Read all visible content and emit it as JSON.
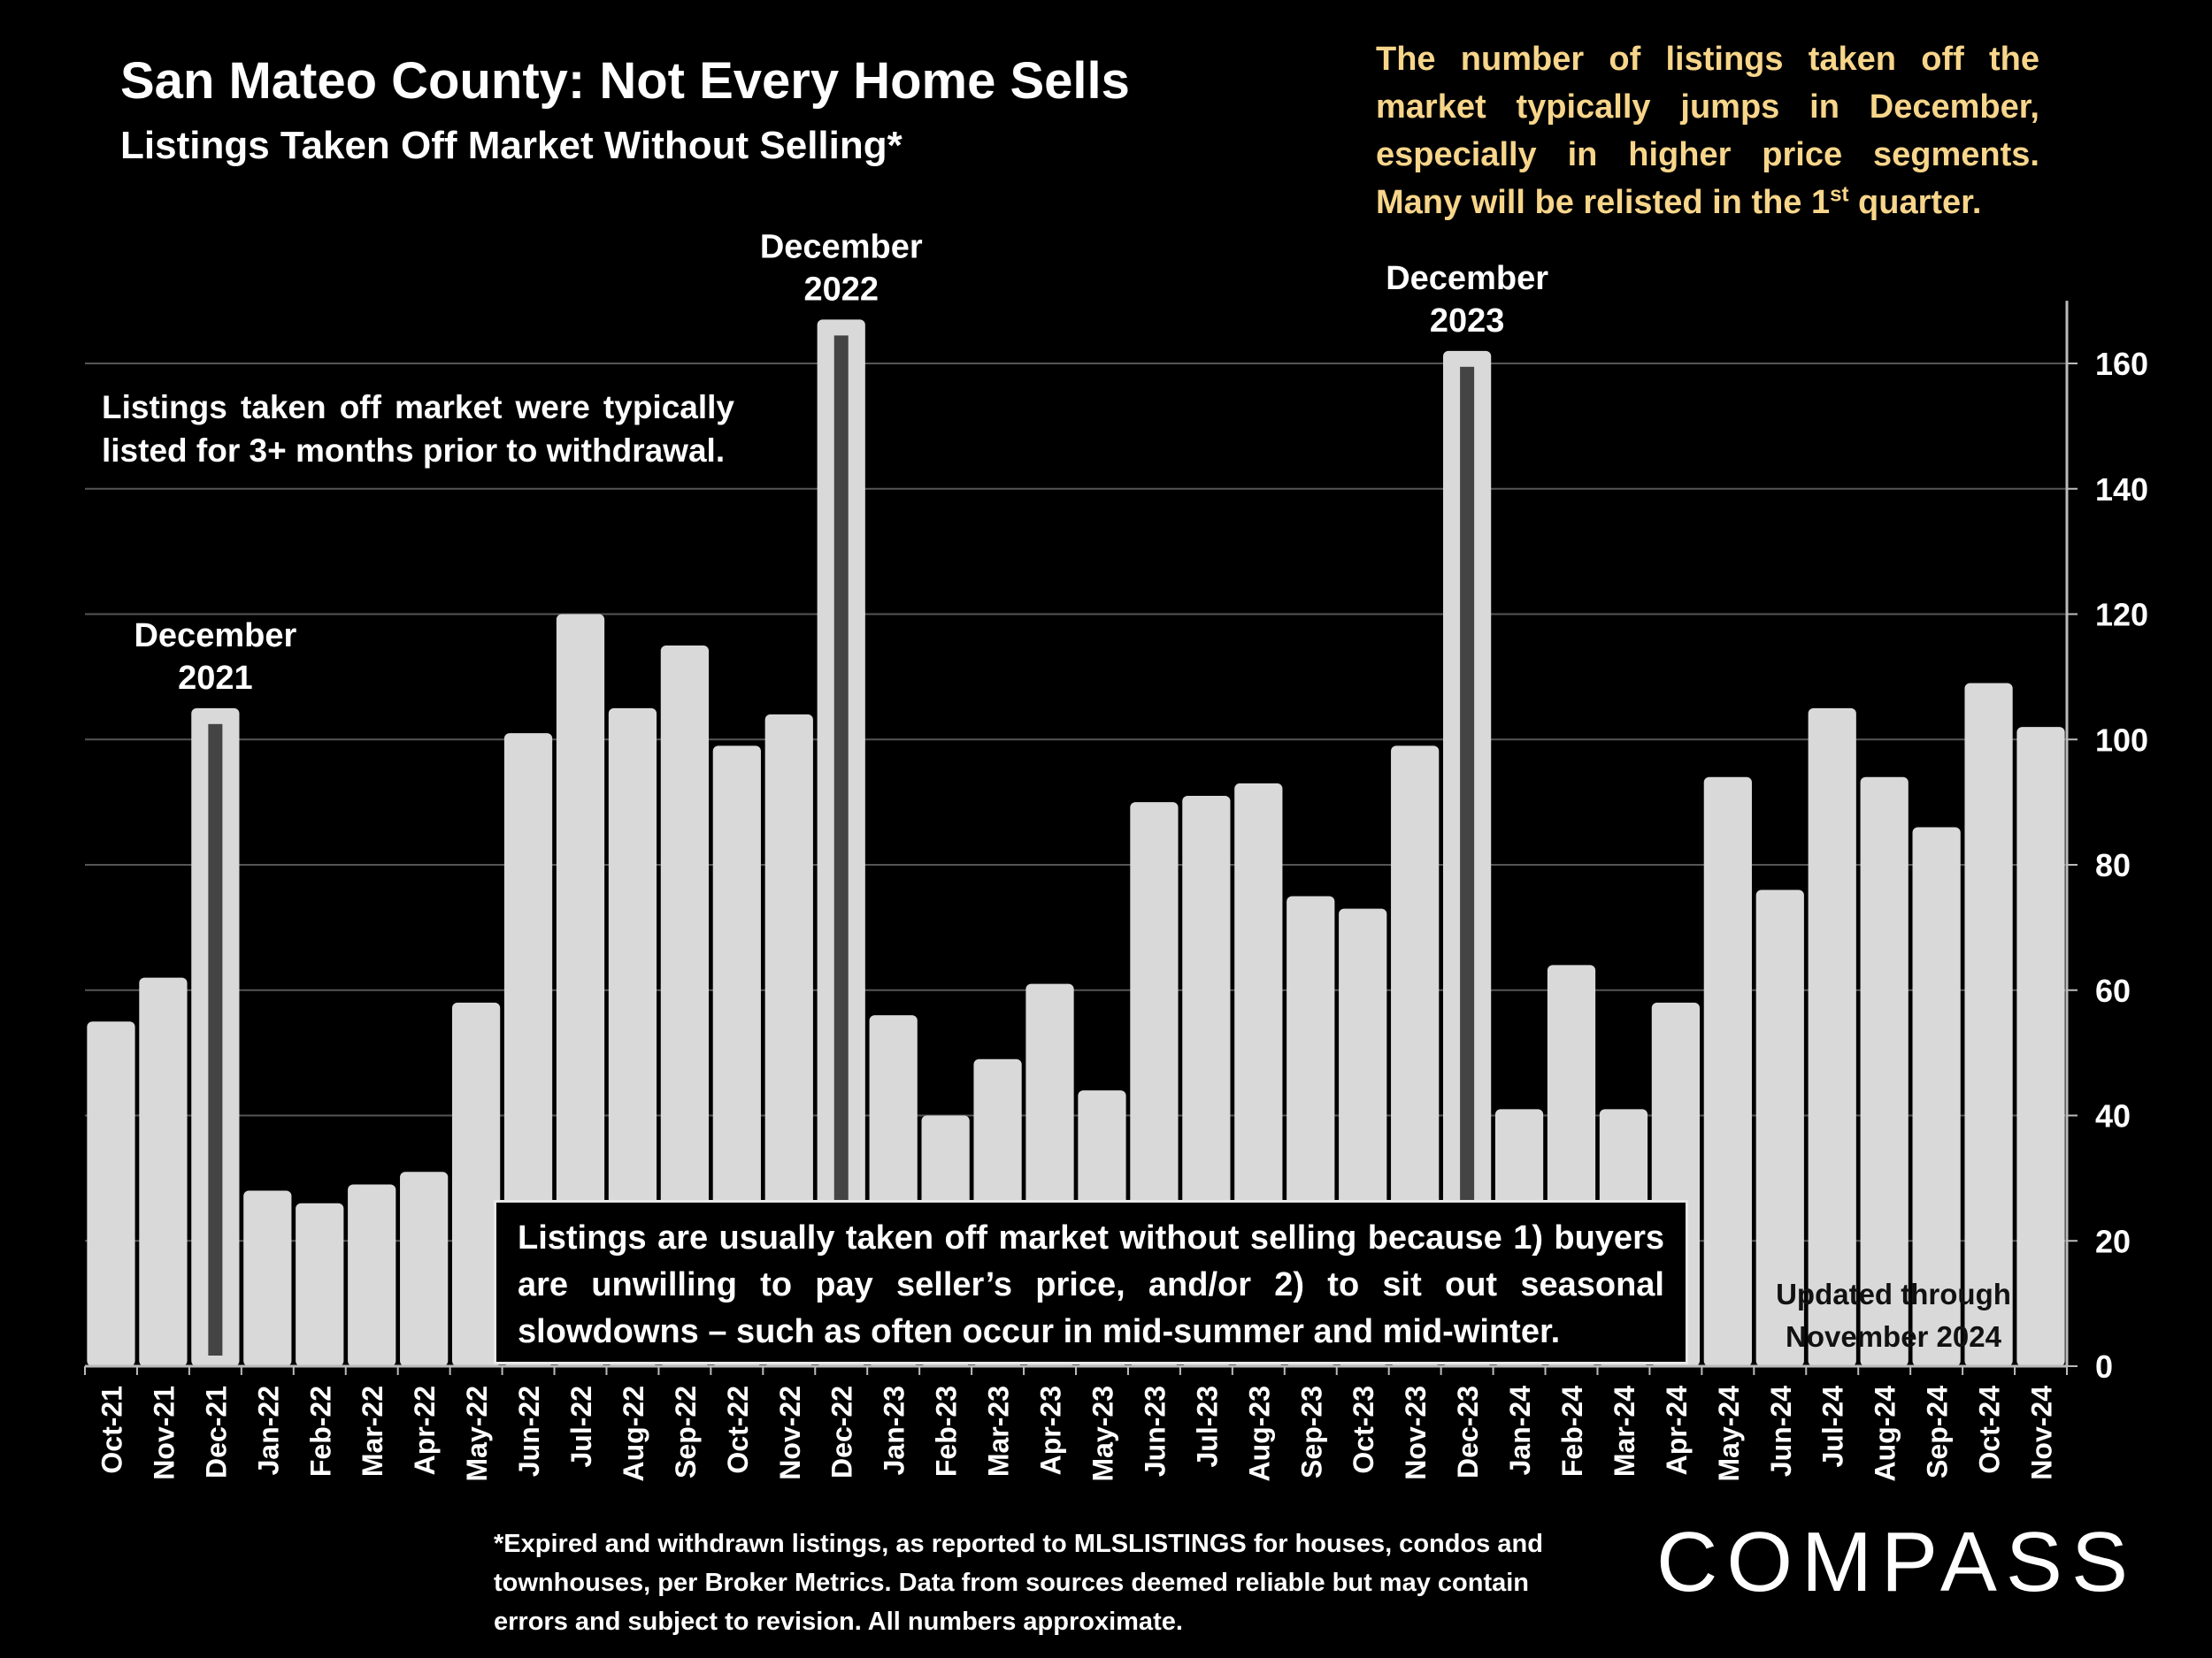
{
  "header": {
    "title": "San Mateo County: Not Every Home Sells",
    "subtitle": "Listings Taken Off Market Without Selling*"
  },
  "notes": {
    "top_right_before_sup": "The number of listings taken off the market typically jumps in December, especially in higher price segments. Many will be relisted in the 1",
    "top_right_sup": "st",
    "top_right_after_sup": " quarter.",
    "left": "Listings taken off market were typically listed for 3+ months prior to withdrawal.",
    "box": "Listings are usually taken off market without selling because 1) buyers are unwilling to pay seller’s price, and/or 2) to sit out seasonal slowdowns – such as often occur in mid-summer and mid-winter.",
    "updated_line1": "Updated through",
    "updated_line2": "November 2024",
    "footnote": "*Expired and withdrawn listings, as reported to MLSLISTINGS for houses, condos and townhouses, per Broker Metrics. Data from sources deemed reliable but may contain errors and subject to revision. All numbers approximate."
  },
  "logo": {
    "text": "COMPASS"
  },
  "colors": {
    "background": "#000000",
    "bar": "#d9d9d9",
    "highlight_stripe": "#444444",
    "note_yellow": "#f7d58a",
    "grid": "#555555"
  },
  "chart_data": {
    "type": "bar",
    "categories": [
      "Oct-21",
      "Nov-21",
      "Dec-21",
      "Jan-22",
      "Feb-22",
      "Mar-22",
      "Apr-22",
      "May-22",
      "Jun-22",
      "Jul-22",
      "Aug-22",
      "Sep-22",
      "Oct-22",
      "Nov-22",
      "Dec-22",
      "Jan-23",
      "Feb-23",
      "Mar-23",
      "Apr-23",
      "May-23",
      "Jun-23",
      "Jul-23",
      "Aug-23",
      "Sep-23",
      "Oct-23",
      "Nov-23",
      "Dec-23",
      "Jan-24",
      "Feb-24",
      "Mar-24",
      "Apr-24",
      "May-24",
      "Jun-24",
      "Jul-24",
      "Aug-24",
      "Sep-24",
      "Oct-24",
      "Nov-24"
    ],
    "values": [
      55,
      62,
      105,
      28,
      26,
      29,
      31,
      58,
      101,
      120,
      105,
      115,
      99,
      104,
      167,
      56,
      40,
      49,
      61,
      44,
      90,
      91,
      93,
      75,
      73,
      99,
      162,
      41,
      64,
      41,
      58,
      94,
      76,
      105,
      94,
      86,
      109,
      102
    ],
    "highlighted": [
      "Dec-21",
      "Dec-22",
      "Dec-23"
    ],
    "annotations": [
      {
        "category": "Dec-21",
        "line1": "December",
        "line2": "2021"
      },
      {
        "category": "Dec-22",
        "line1": "December",
        "line2": "2022"
      },
      {
        "category": "Dec-23",
        "line1": "December",
        "line2": "2023"
      }
    ],
    "y_axis": {
      "position": "right",
      "min": 0,
      "max": 170,
      "ticks": [
        0,
        20,
        40,
        60,
        80,
        100,
        120,
        140,
        160
      ]
    },
    "grid": true,
    "legend": "none"
  }
}
